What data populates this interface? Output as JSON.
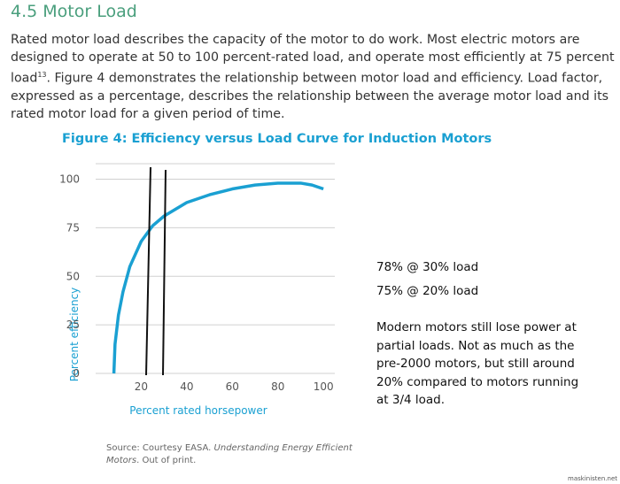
{
  "header": {
    "title": "4.5 Motor Load"
  },
  "paragraph": {
    "before": "Rated motor load describes the capacity of the motor to do work. Most electric motors are designed to operate at 50 to 100 percent-rated load, and operate most efficiently at 75 percent load",
    "sup": "13",
    "after": ". Figure 4 demonstrates the relationship between motor load and efficiency. Load factor, expressed as a percentage, describes the relationship between the average motor load and its rated motor load for a given period of time."
  },
  "chart_data": {
    "type": "line",
    "title": "Figure 4: Efficiency versus Load Curve for Induction Motors",
    "x_label": "Percent rated horsepower",
    "y_label": "Percent efficiency",
    "x": [
      8,
      8.5,
      10,
      12,
      15,
      20,
      25,
      30,
      40,
      50,
      60,
      70,
      80,
      90,
      95,
      100
    ],
    "values": [
      0,
      15,
      30,
      42,
      55,
      68,
      76,
      81,
      88,
      92,
      95,
      97,
      98,
      98,
      97,
      95
    ],
    "color": "#1aa0d2",
    "xlim": [
      0,
      105
    ],
    "ylim": [
      0,
      108
    ],
    "xticks": [
      20,
      40,
      60,
      80,
      100
    ],
    "yticks": [
      0,
      25,
      50,
      75,
      100
    ],
    "grid": true
  },
  "notes": {
    "line1": "78% @ 30% load",
    "line2": "75% @ 20% load",
    "paragraph": "Modern motors still lose power at partial loads. Not as much as the pre-2000 motors, but still around 20% compared to motors running at 3/4 load."
  },
  "source": {
    "prefix": "Source: Courtesy EASA. ",
    "italic": "Understanding Energy Efficient Motors",
    "suffix": ". Out of print."
  },
  "watermark": "maskinisten.net"
}
